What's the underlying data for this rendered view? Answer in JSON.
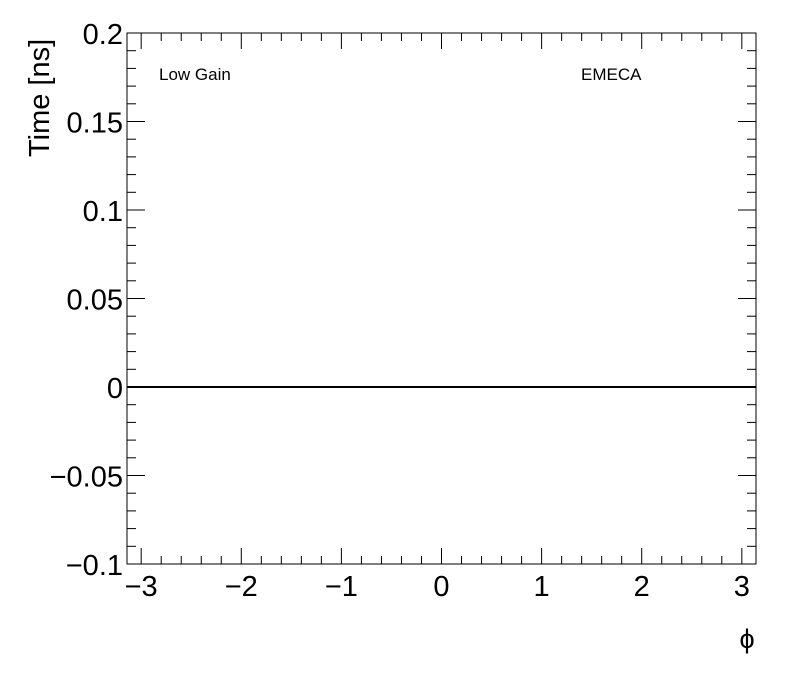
{
  "chart_data": {
    "type": "line",
    "title": "",
    "xlabel": "ϕ",
    "ylabel": "Time [ns]",
    "xlim": [
      -3.1416,
      3.1416
    ],
    "ylim": [
      -0.1,
      0.2
    ],
    "x_ticks": [
      -3,
      -2,
      -1,
      0,
      1,
      2,
      3
    ],
    "x_tick_labels": [
      "−3",
      "−2",
      "−1",
      "0",
      "1",
      "2",
      "3"
    ],
    "y_ticks": [
      -0.1,
      -0.05,
      0,
      0.05,
      0.1,
      0.15,
      0.2
    ],
    "y_tick_labels": [
      "−0.1",
      "−0.05",
      "0",
      "0.05",
      "0.1",
      "0.15",
      "0.2"
    ],
    "grid": false,
    "annotations": [
      "Low Gain",
      "EMECA"
    ],
    "series": [
      {
        "x": [
          -3.1416,
          3.1416
        ],
        "y": [
          0,
          0
        ],
        "color": "#000000"
      }
    ]
  }
}
